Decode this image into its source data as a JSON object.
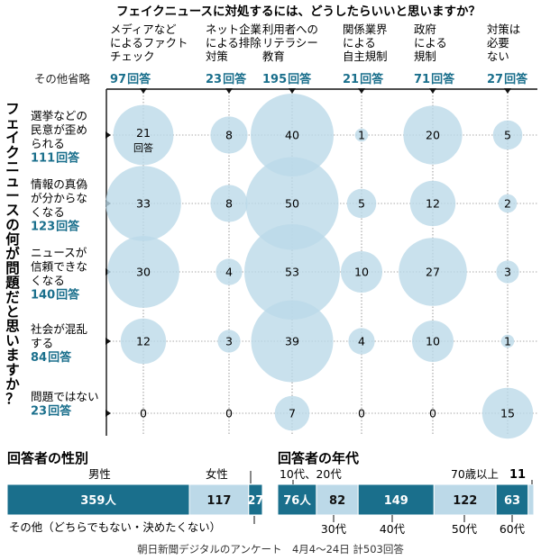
{
  "chart_data": [
    {
      "type": "bubble-matrix",
      "title": "フェイクニュースに対処するには、どうしたらいいと思いますか？",
      "row_axis_title": "フェイクニュースの何が問題だと思いますか？",
      "omitted_note": "その他省略",
      "count_unit": "回答",
      "columns": [
        {
          "label_lines": [
            "メディアなど",
            "によるファクト",
            "チェック"
          ],
          "count": 97
        },
        {
          "label_lines": [
            "ネット企業",
            "による排除",
            "対策"
          ],
          "count": 23
        },
        {
          "label_lines": [
            "利用者への",
            "リテラシー",
            "教育"
          ],
          "count": 195
        },
        {
          "label_lines": [
            "関係業界",
            "による",
            "自主規制"
          ],
          "count": 21
        },
        {
          "label_lines": [
            "政府",
            "による",
            "規制"
          ],
          "count": 71
        },
        {
          "label_lines": [
            "対策は",
            "必要",
            "ない"
          ],
          "count": 27
        }
      ],
      "rows": [
        {
          "label_lines": [
            "選挙などの",
            "民意が歪め",
            "られる"
          ],
          "count": 111,
          "values": [
            21,
            8,
            40,
            1,
            20,
            5
          ]
        },
        {
          "label_lines": [
            "情報の真偽",
            "が分からな",
            "くなる"
          ],
          "count": 123,
          "values": [
            33,
            8,
            50,
            5,
            12,
            2
          ]
        },
        {
          "label_lines": [
            "ニュースが",
            "信頼できな",
            "くなる"
          ],
          "count": 140,
          "values": [
            30,
            4,
            53,
            10,
            27,
            3
          ]
        },
        {
          "label_lines": [
            "社会が混乱",
            "する"
          ],
          "count": 84,
          "values": [
            12,
            3,
            39,
            4,
            10,
            1
          ]
        },
        {
          "label_lines": [
            "問題ではない"
          ],
          "count": 23,
          "values": [
            0,
            0,
            7,
            0,
            0,
            15
          ]
        }
      ],
      "first_cell_unit": "回答",
      "bubble_color": "#bcd9e8",
      "accent_color": "#1a6f8c"
    },
    {
      "type": "bar",
      "orientation": "horizontal-stacked",
      "title": "回答者の性別",
      "segments": [
        {
          "label": "男性",
          "value": 359,
          "value_text": "359",
          "unit": "人",
          "color": "#1a6f8c"
        },
        {
          "label": "女性",
          "value": 117,
          "value_text": "117",
          "color": "#bcd9e8"
        },
        {
          "label": "その他（どちらでもない・決めたくない）",
          "value": 27,
          "value_text": "27",
          "color": "#1a6f8c"
        }
      ]
    },
    {
      "type": "bar",
      "orientation": "horizontal-stacked",
      "title": "回答者の年代",
      "segments": [
        {
          "label": "10代、20代",
          "value": 76,
          "value_text": "76",
          "unit": "人",
          "color": "#1a6f8c"
        },
        {
          "label": "30代",
          "value": 82,
          "value_text": "82",
          "color": "#bcd9e8"
        },
        {
          "label": "40代",
          "value": 149,
          "value_text": "149",
          "color": "#1a6f8c"
        },
        {
          "label": "50代",
          "value": 122,
          "value_text": "122",
          "color": "#bcd9e8"
        },
        {
          "label": "60代",
          "value": 63,
          "value_text": "63",
          "color": "#1a6f8c"
        },
        {
          "label": "70歳以上",
          "value": 11,
          "value_text": "11",
          "color": "#bcd9e8"
        }
      ]
    }
  ],
  "footer": {
    "source": "朝日新聞デジタルのアンケート　4月4〜24日 計503回答"
  }
}
